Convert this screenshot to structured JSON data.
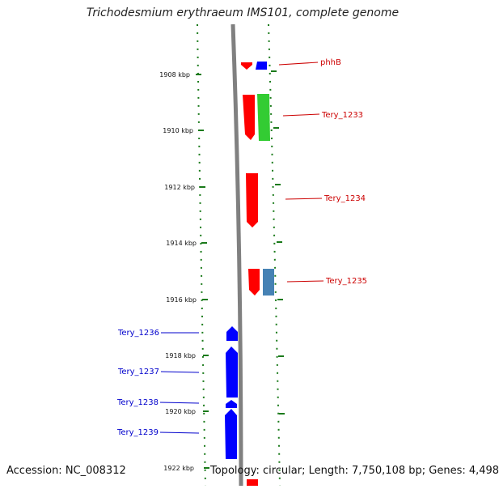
{
  "title": "Trichodesmium erythraeum IMS101, complete genome",
  "footer": {
    "accession": "Accession: NC_008312",
    "summary": "Topology: circular; Length: 7,750,108 bp; Genes: 4,498"
  },
  "colors": {
    "backbone": "#808080",
    "tick": "#1a7a1a",
    "forward_label": "#cc0000",
    "reverse_label": "#0000cc",
    "red_gene": "#ff0000",
    "green_gene": "#33cc33",
    "blue_gene": "#0000ff",
    "steelblue_gene": "#4682b4"
  },
  "ticks": [
    "1908 kbp",
    "1910 kbp",
    "1912 kbp",
    "1914 kbp",
    "1916 kbp",
    "1918 kbp",
    "1920 kbp",
    "1922 kbp"
  ],
  "genes": [
    {
      "label": "phhB",
      "strand": "forward"
    },
    {
      "label": "Tery_1233",
      "strand": "forward"
    },
    {
      "label": "Tery_1234",
      "strand": "forward"
    },
    {
      "label": "Tery_1235",
      "strand": "forward"
    },
    {
      "label": "Tery_1236",
      "strand": "reverse"
    },
    {
      "label": "Tery_1237",
      "strand": "reverse"
    },
    {
      "label": "Tery_1238",
      "strand": "reverse"
    },
    {
      "label": "Tery_1239",
      "strand": "reverse"
    }
  ]
}
